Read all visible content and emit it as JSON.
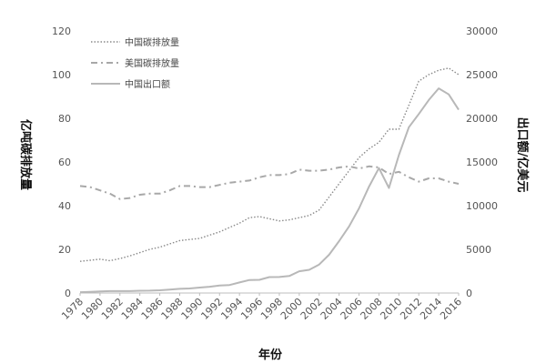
{
  "chart_data": {
    "type": "line",
    "title": "",
    "xlabel": "年份",
    "ylabel_left": "亿吨碳排放量",
    "ylabel_right": "出口额/亿美元",
    "x": [
      1978,
      1979,
      1980,
      1981,
      1982,
      1983,
      1984,
      1985,
      1986,
      1987,
      1988,
      1989,
      1990,
      1991,
      1992,
      1993,
      1994,
      1995,
      1996,
      1997,
      1998,
      1999,
      2000,
      2001,
      2002,
      2003,
      2004,
      2005,
      2006,
      2007,
      2008,
      2009,
      2010,
      2011,
      2012,
      2013,
      2014,
      2015,
      2016
    ],
    "xticks": [
      "1978",
      "1980",
      "1982",
      "1984",
      "1986",
      "1988",
      "1990",
      "1992",
      "1994",
      "1996",
      "1998",
      "2000",
      "2002",
      "2004",
      "2006",
      "2008",
      "2010",
      "2012",
      "2014",
      "2016"
    ],
    "ylim_left": [
      0,
      120
    ],
    "yticks_left": [
      "0",
      "20",
      "40",
      "60",
      "80",
      "100",
      "120"
    ],
    "ylim_right": [
      0,
      30000
    ],
    "yticks_right": [
      "0",
      "5000",
      "10000",
      "15000",
      "20000",
      "25000",
      "30000"
    ],
    "legend_position": "top-left",
    "series": [
      {
        "name": "中国碳排放量",
        "axis": "left",
        "style": "dotted",
        "color": "#8a8a8a",
        "values": [
          14.5,
          15,
          15.5,
          14.8,
          15.8,
          17,
          18.5,
          20,
          21,
          22.5,
          24,
          24.5,
          25,
          26.5,
          28,
          30,
          32,
          34.5,
          35,
          34,
          33,
          33.5,
          34.5,
          35.5,
          38,
          44,
          50,
          56,
          62,
          66,
          69,
          75,
          75,
          86,
          97,
          100,
          102,
          103,
          100
        ]
      },
      {
        "name": "美国碳排放量",
        "axis": "left",
        "style": "dashed",
        "color": "#a8a8a8",
        "values": [
          49,
          48.5,
          47,
          45.5,
          43,
          43.5,
          45,
          45.5,
          45.5,
          47,
          49,
          49,
          48.5,
          48.5,
          49.5,
          50.5,
          51,
          51.5,
          53,
          54,
          54,
          54.5,
          56.5,
          56,
          56,
          56.5,
          57.5,
          58,
          57,
          58,
          57.5,
          54.5,
          55.5,
          53,
          51,
          52.5,
          52.5,
          51,
          50
        ]
      },
      {
        "name": "中国出口额",
        "axis": "right",
        "style": "solid",
        "color": "#b8b8b8",
        "values": [
          98,
          137,
          181,
          220,
          223,
          222,
          261,
          274,
          309,
          394,
          475,
          525,
          621,
          719,
          850,
          917,
          1210,
          1488,
          1510,
          1828,
          1837,
          1949,
          2492,
          2661,
          3256,
          4382,
          5933,
          7620,
          9690,
          12178,
          14307,
          12016,
          15778,
          18984,
          20487,
          22090,
          23423,
          22735,
          20976
        ]
      }
    ]
  }
}
